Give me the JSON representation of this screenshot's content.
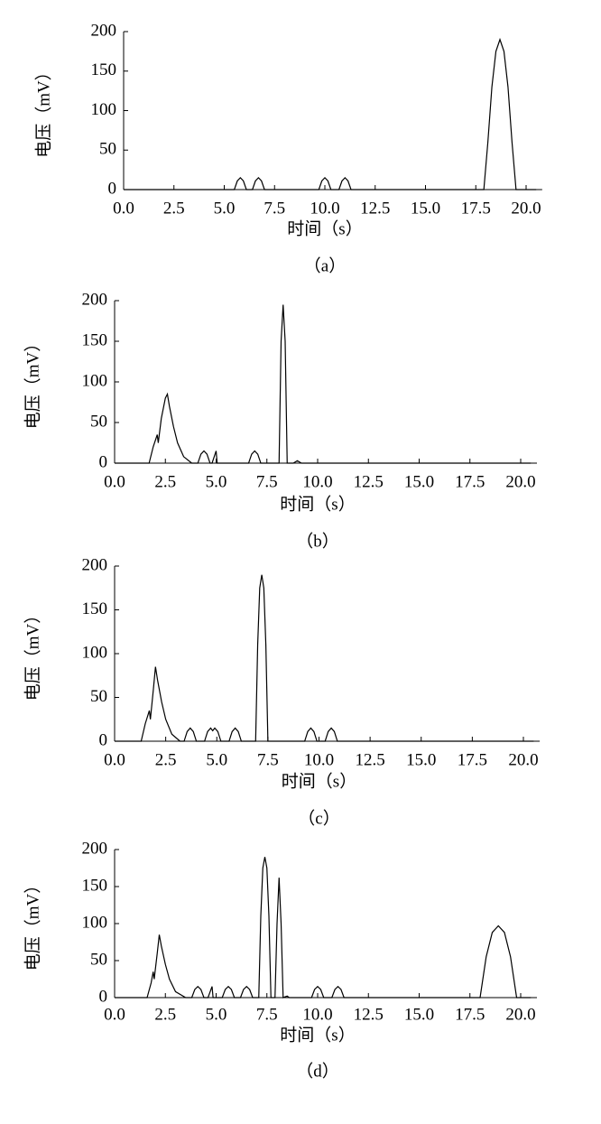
{
  "chart_data": [
    {
      "type": "line",
      "caption": "（a）",
      "xlabel": "时间（s）",
      "ylabel": "电压（mV）",
      "color": "#000000",
      "xlim": [
        0,
        20.8
      ],
      "ylim": [
        0,
        200
      ],
      "xticks": [
        {
          "value": 0,
          "label": "0.0"
        },
        2.5,
        {
          "value": 5,
          "label": "5.0"
        },
        7.5,
        {
          "value": 10,
          "label": "10.0"
        },
        12.5,
        {
          "value": 15,
          "label": "15.0"
        },
        17.5,
        {
          "value": 20,
          "label": "20.0"
        }
      ],
      "yticks": [
        0,
        50,
        100,
        150,
        200
      ],
      "x": [
        0,
        5.5,
        5.65,
        5.8,
        5.95,
        6.1,
        6.4,
        6.55,
        6.7,
        6.85,
        7.0,
        9.7,
        9.85,
        10.0,
        10.15,
        10.3,
        10.7,
        10.85,
        11.0,
        11.15,
        11.3,
        17.9,
        18.1,
        18.3,
        18.5,
        18.7,
        18.9,
        19.1,
        19.3,
        19.5,
        20.5
      ],
      "values": [
        0,
        0,
        11,
        15,
        11,
        0,
        0,
        11,
        15,
        11,
        0,
        0,
        11,
        15,
        11,
        0,
        0,
        11,
        15,
        11,
        0,
        0,
        60,
        130,
        175,
        190,
        175,
        130,
        60,
        0,
        0
      ]
    },
    {
      "type": "line",
      "caption": "（b）",
      "xlabel": "时间（s）",
      "ylabel": "电压（mV）",
      "color": "#000000",
      "xlim": [
        0,
        20.8
      ],
      "ylim": [
        0,
        200
      ],
      "xticks": [
        {
          "value": 0,
          "label": "0.0"
        },
        2.5,
        {
          "value": 5,
          "label": "5.0"
        },
        7.5,
        {
          "value": 10,
          "label": "10.0"
        },
        12.5,
        {
          "value": 15,
          "label": "15.0"
        },
        17.5,
        {
          "value": 20,
          "label": "20.0"
        }
      ],
      "yticks": [
        0,
        50,
        100,
        150,
        200
      ],
      "x": [
        0,
        1.7,
        1.9,
        2.1,
        2.15,
        2.3,
        2.5,
        2.6,
        2.7,
        2.9,
        3.1,
        3.4,
        3.8,
        4.1,
        4.25,
        4.4,
        4.55,
        4.7,
        4.8,
        5.0,
        5.05,
        6.6,
        6.75,
        6.9,
        7.05,
        7.2,
        8.1,
        8.2,
        8.3,
        8.4,
        8.5,
        8.8,
        9.0,
        9.2,
        20.5
      ],
      "values": [
        0,
        0,
        20,
        35,
        25,
        55,
        80,
        85,
        70,
        45,
        25,
        8,
        0,
        0,
        11,
        15,
        11,
        0,
        0,
        15,
        0,
        0,
        11,
        15,
        11,
        0,
        0,
        150,
        195,
        150,
        0,
        0,
        3,
        0,
        0
      ]
    },
    {
      "type": "line",
      "caption": "（c）",
      "xlabel": "时间（s）",
      "ylabel": "电压（mV）",
      "color": "#000000",
      "xlim": [
        0,
        20.8
      ],
      "ylim": [
        0,
        200
      ],
      "xticks": [
        {
          "value": 0,
          "label": "0.0"
        },
        2.5,
        {
          "value": 5,
          "label": "5.0"
        },
        7.5,
        {
          "value": 10,
          "label": "10.0"
        },
        12.5,
        {
          "value": 15,
          "label": "15.0"
        },
        17.5,
        {
          "value": 20,
          "label": "20.0"
        }
      ],
      "yticks": [
        0,
        50,
        100,
        150,
        200
      ],
      "x": [
        0,
        1.3,
        1.5,
        1.7,
        1.75,
        1.9,
        2.0,
        2.1,
        2.3,
        2.5,
        2.8,
        3.2,
        3.4,
        3.55,
        3.7,
        3.85,
        4.0,
        4.4,
        4.55,
        4.7,
        4.8,
        4.9,
        5.05,
        5.2,
        5.6,
        5.75,
        5.9,
        6.05,
        6.2,
        6.9,
        7.0,
        7.1,
        7.2,
        7.3,
        7.4,
        7.5,
        9.3,
        9.45,
        9.6,
        9.75,
        9.9,
        10.3,
        10.45,
        10.6,
        10.75,
        10.9,
        20.5
      ],
      "values": [
        0,
        0,
        20,
        35,
        25,
        60,
        85,
        70,
        45,
        25,
        8,
        0,
        0,
        11,
        15,
        11,
        0,
        0,
        11,
        15,
        12,
        15,
        11,
        0,
        0,
        11,
        15,
        11,
        0,
        0,
        110,
        175,
        190,
        175,
        110,
        0,
        0,
        11,
        15,
        11,
        0,
        0,
        11,
        15,
        11,
        0,
        0
      ]
    },
    {
      "type": "line",
      "caption": "（d）",
      "xlabel": "时间（s）",
      "ylabel": "电压（mV）",
      "color": "#000000",
      "xlim": [
        0,
        20.8
      ],
      "ylim": [
        0,
        200
      ],
      "xticks": [
        {
          "value": 0,
          "label": "0.0"
        },
        2.5,
        {
          "value": 5,
          "label": "5.0"
        },
        7.5,
        {
          "value": 10,
          "label": "10.0"
        },
        12.5,
        {
          "value": 15,
          "label": "15.0"
        },
        17.5,
        {
          "value": 20,
          "label": "20.0"
        }
      ],
      "yticks": [
        0,
        50,
        100,
        150,
        200
      ],
      "x": [
        0,
        1.6,
        1.8,
        1.9,
        1.95,
        2.1,
        2.2,
        2.3,
        2.5,
        2.7,
        3.0,
        3.5,
        3.8,
        3.95,
        4.1,
        4.25,
        4.4,
        4.6,
        4.8,
        4.85,
        5.3,
        5.45,
        5.6,
        5.75,
        5.9,
        6.2,
        6.35,
        6.5,
        6.65,
        6.8,
        7.1,
        7.2,
        7.3,
        7.4,
        7.5,
        7.6,
        7.7,
        7.9,
        8.0,
        8.1,
        8.2,
        8.3,
        8.5,
        8.6,
        9.7,
        9.85,
        10.0,
        10.15,
        10.3,
        10.7,
        10.85,
        11.0,
        11.15,
        11.3,
        18.0,
        18.3,
        18.6,
        18.9,
        19.2,
        19.5,
        19.8,
        20.5
      ],
      "values": [
        0,
        0,
        20,
        35,
        25,
        60,
        85,
        70,
        45,
        25,
        8,
        0,
        0,
        11,
        15,
        11,
        0,
        0,
        15,
        0,
        0,
        11,
        15,
        11,
        0,
        0,
        11,
        15,
        11,
        0,
        0,
        110,
        175,
        190,
        175,
        110,
        0,
        0,
        100,
        162,
        100,
        0,
        2,
        0,
        0,
        11,
        15,
        11,
        0,
        0,
        11,
        15,
        11,
        0,
        0,
        55,
        88,
        97,
        88,
        55,
        0,
        0
      ]
    }
  ]
}
